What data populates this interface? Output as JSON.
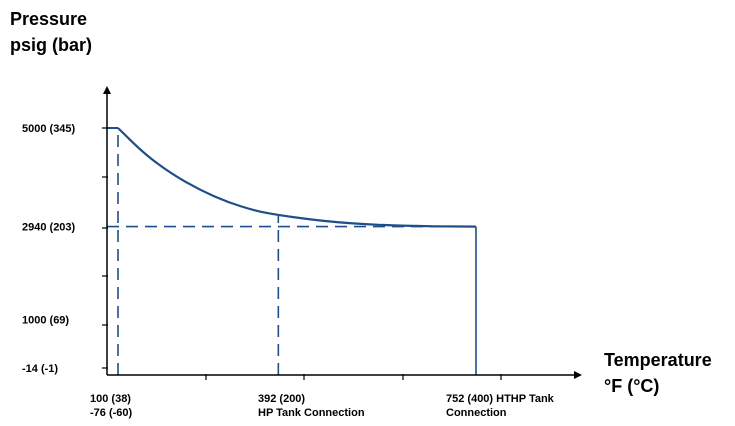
{
  "chart_data": {
    "type": "line",
    "title": "",
    "ylabel_lines": [
      "Pressure",
      "psig (bar)"
    ],
    "xlabel_lines": [
      "Temperature",
      "°F (°C)"
    ],
    "y_axis_scale": "linear",
    "grid": false,
    "legend": "none",
    "colors": {
      "curve": "#1f4e89",
      "axis": "#000000"
    },
    "y_ticks": [
      {
        "value": -14,
        "label": "-14 (-1)"
      },
      {
        "value": 1000,
        "label": "1000 (69)"
      },
      {
        "value": 2940,
        "label": "2940 (203)"
      },
      {
        "value": 5000,
        "label": "5000 (345)"
      }
    ],
    "x_ticks": [
      {
        "value": 100,
        "lines": [
          "100 (38)",
          "-76 (-60)"
        ]
      },
      {
        "value": 392,
        "lines": [
          "392 (200)",
          "HP Tank Connection"
        ]
      },
      {
        "value": 752,
        "lines": [
          "752 (400) HTHP Tank",
          "Connection"
        ]
      }
    ],
    "series": [
      {
        "x": [
          100,
          150,
          200,
          250,
          300,
          350,
          392,
          450,
          500,
          550,
          600,
          650,
          700,
          752
        ],
        "y": [
          5000,
          4440,
          4025,
          3700,
          3450,
          3270,
          3180,
          3090,
          3030,
          2990,
          2965,
          2950,
          2943,
          2940
        ]
      }
    ],
    "reference_lines": [
      {
        "kind": "vertical-dashed",
        "x": 100,
        "from_y": -14,
        "to_y": 5000
      },
      {
        "kind": "vertical-dashed",
        "x": 392,
        "from_y": -14,
        "to_y": 3180
      },
      {
        "kind": "horizontal-dashed",
        "y": 2940,
        "from_x": 100,
        "to_x": 752
      },
      {
        "kind": "vertical-solid",
        "x": 752,
        "from_y": -14,
        "to_y": 2940
      }
    ]
  }
}
